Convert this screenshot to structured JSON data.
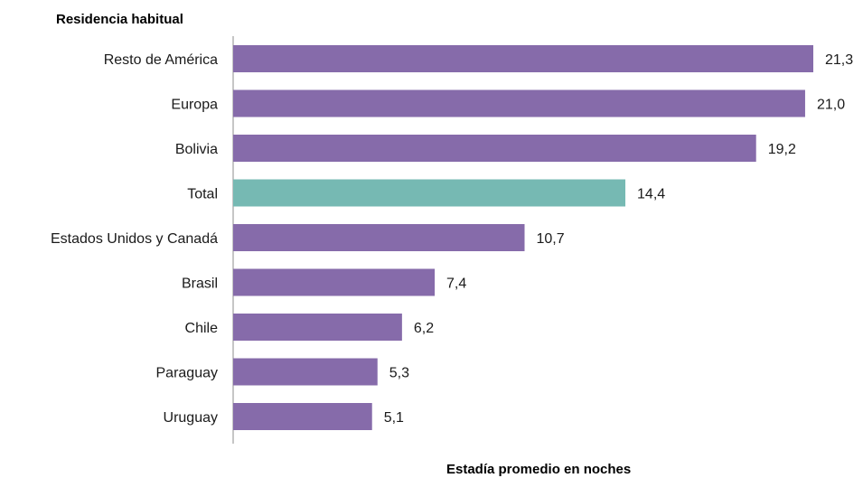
{
  "chart_data": {
    "type": "bar",
    "orientation": "horizontal",
    "title": "",
    "ylabel": "Residencia habitual",
    "xlabel": "Estadía promedio en noches",
    "categories": [
      "Resto de América",
      "Europa",
      "Bolivia",
      "Total",
      "Estados Unidos y Canadá",
      "Brasil",
      "Chile",
      "Paraguay",
      "Uruguay"
    ],
    "values": [
      21.3,
      21.0,
      19.2,
      14.4,
      10.7,
      7.4,
      6.2,
      5.3,
      5.1
    ],
    "value_labels": [
      "21,3",
      "21,0",
      "19,2",
      "14,4",
      "10,7",
      "7,4",
      "6,2",
      "5,3",
      "5,1"
    ],
    "highlight_category": "Total",
    "xlim": [
      0,
      21.3
    ],
    "grid": false,
    "legend": "none",
    "colors": {
      "bar": "#866BAA",
      "highlight": "#76B9B3",
      "axis": "#8c8c8c"
    }
  }
}
